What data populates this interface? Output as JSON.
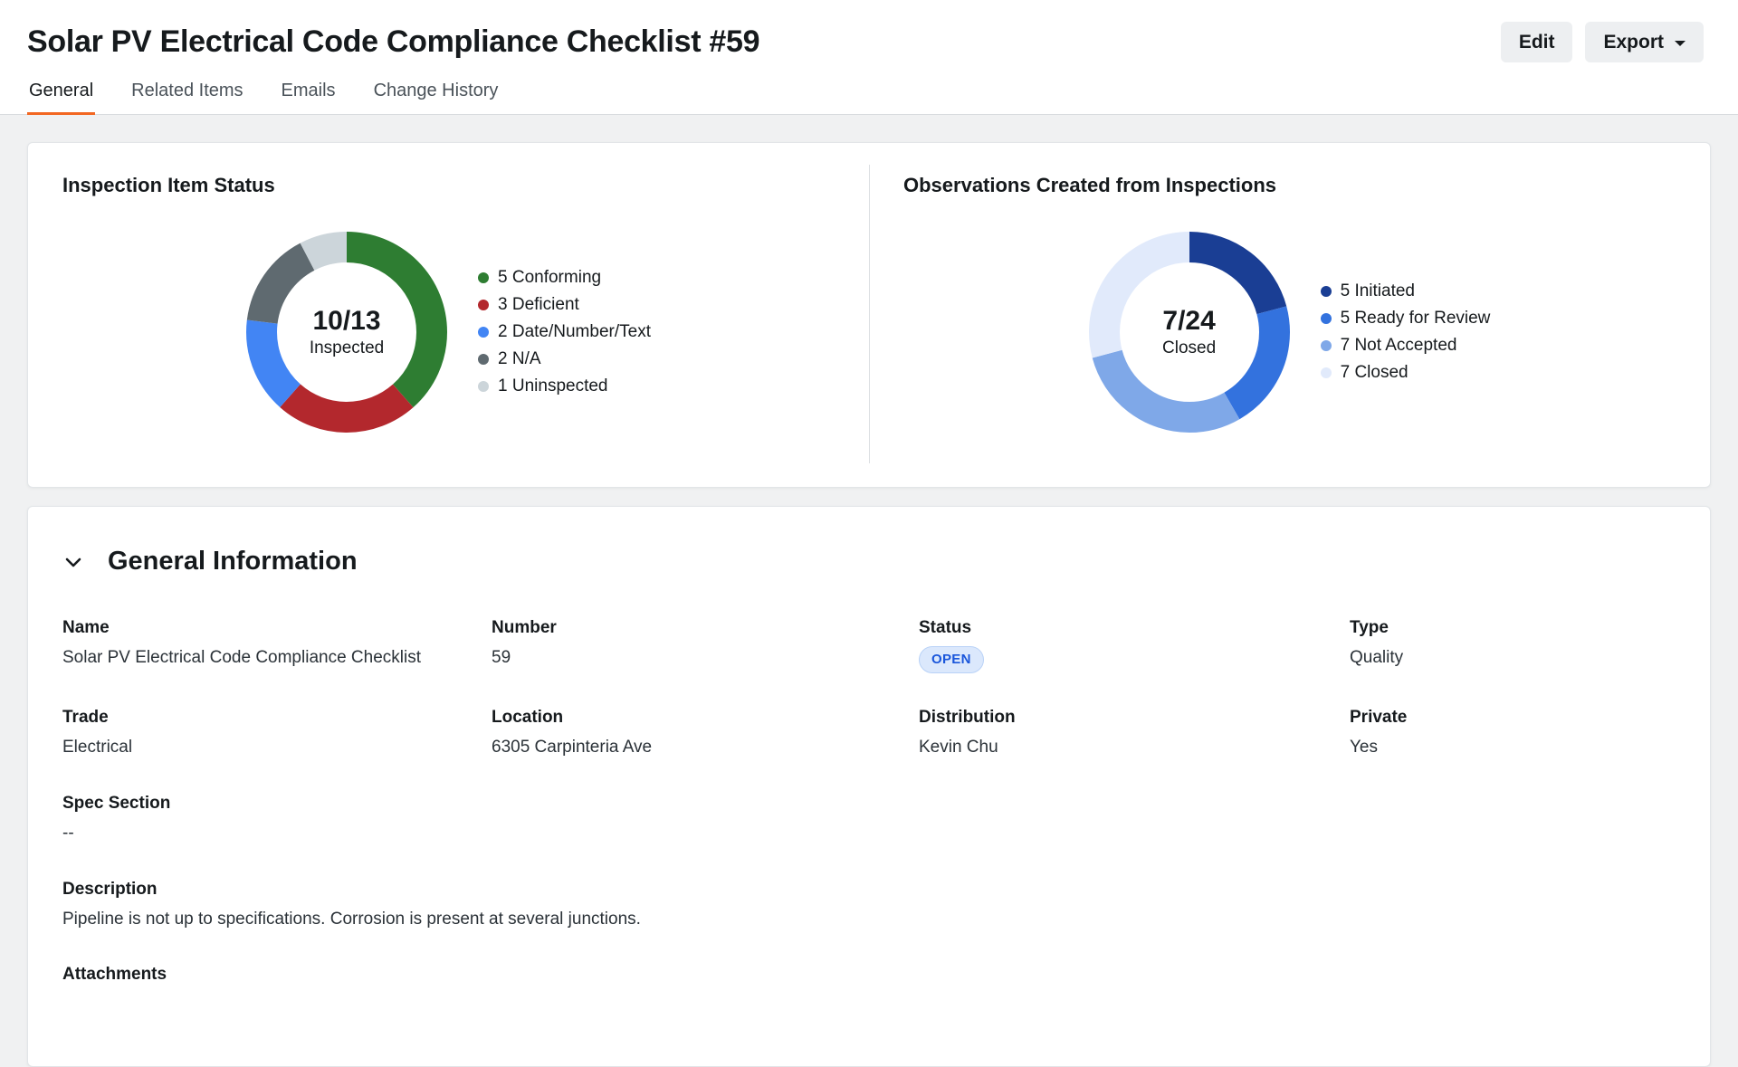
{
  "header": {
    "title": "Solar PV Electrical Code Compliance Checklist #59",
    "edit_label": "Edit",
    "export_label": "Export"
  },
  "tabs": {
    "items": [
      {
        "label": "General",
        "active": true
      },
      {
        "label": "Related Items",
        "active": false
      },
      {
        "label": "Emails",
        "active": false
      },
      {
        "label": "Change History",
        "active": false
      }
    ]
  },
  "chart_data": [
    {
      "type": "pie",
      "title": "Inspection Item Status",
      "center_value": "10/13",
      "center_label": "Inspected",
      "total": 13,
      "legend_position": "right",
      "segments": [
        {
          "label": "5 Conforming",
          "value": 5,
          "color": "#2e7d32"
        },
        {
          "label": "3 Deficient",
          "value": 3,
          "color": "#b3282d"
        },
        {
          "label": "2 Date/Number/Text",
          "value": 2,
          "color": "#4285f4"
        },
        {
          "label": "2 N/A",
          "value": 2,
          "color": "#5f6a70"
        },
        {
          "label": "1 Uninspected",
          "value": 1,
          "color": "#ccd5da"
        }
      ]
    },
    {
      "type": "pie",
      "title": "Observations Created from Inspections",
      "center_value": "7/24",
      "center_label": "Closed",
      "total": 24,
      "legend_position": "right",
      "segments": [
        {
          "label": "5 Initiated",
          "value": 5,
          "color": "#1a3e94"
        },
        {
          "label": "5 Ready for Review",
          "value": 5,
          "color": "#3372de"
        },
        {
          "label": "7 Not Accepted",
          "value": 7,
          "color": "#7fa8e8"
        },
        {
          "label": "7 Closed",
          "value": 7,
          "color": "#e1eafb"
        }
      ]
    }
  ],
  "general_info": {
    "title": "General Information",
    "fields": {
      "name": {
        "label": "Name",
        "value": "Solar PV Electrical Code Compliance Checklist"
      },
      "number": {
        "label": "Number",
        "value": "59"
      },
      "status": {
        "label": "Status",
        "value": "OPEN"
      },
      "type": {
        "label": "Type",
        "value": "Quality"
      },
      "trade": {
        "label": "Trade",
        "value": "Electrical"
      },
      "location": {
        "label": "Location",
        "value": "6305 Carpinteria Ave"
      },
      "distribution": {
        "label": "Distribution",
        "value": "Kevin Chu"
      },
      "private": {
        "label": "Private",
        "value": "Yes"
      },
      "spec_section": {
        "label": "Spec Section",
        "value": "--"
      },
      "description": {
        "label": "Description",
        "value": "Pipeline is not up to specifications. Corrosion is present at several junctions."
      },
      "attachments": {
        "label": "Attachments"
      }
    }
  },
  "colors": {
    "accent_orange": "#f26722",
    "status_badge_bg": "#dbe8fc",
    "status_badge_text": "#1a56db"
  }
}
